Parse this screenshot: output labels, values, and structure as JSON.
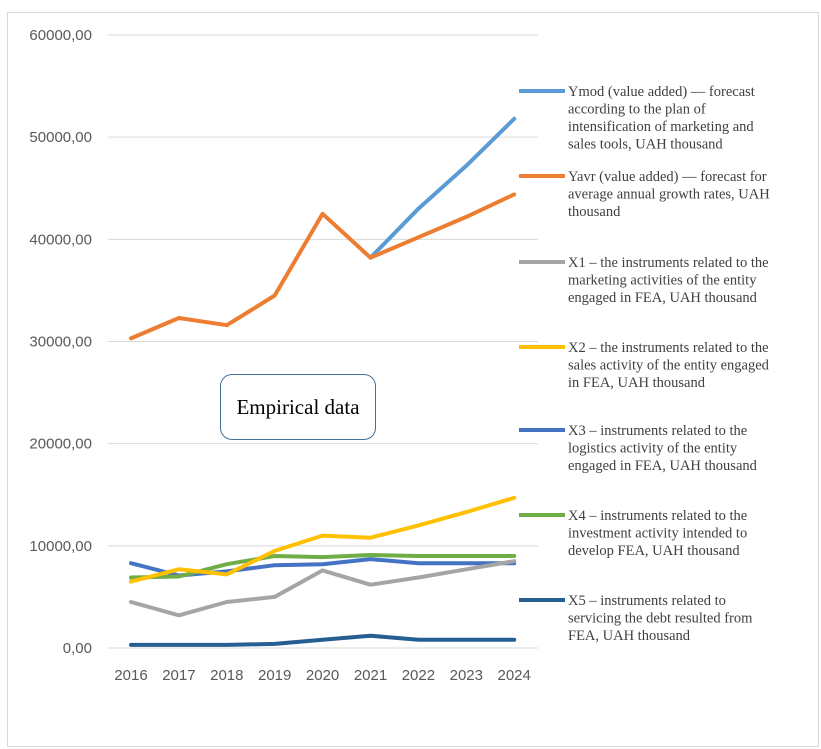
{
  "chart_data": {
    "type": "line",
    "categories": [
      "2016",
      "2017",
      "2018",
      "2019",
      "2020",
      "2021",
      "2022",
      "2023",
      "2024"
    ],
    "y_tick_labels": [
      "0,00",
      "10000,00",
      "20000,00",
      "30000,00",
      "40000,00",
      "50000,00",
      "60000,00"
    ],
    "ylim": [
      0,
      60000
    ],
    "grid": "horizontal",
    "legend_position": "right",
    "annotation": "Empirical data",
    "series": [
      {
        "name": "Ymod (value added) — forecast according to the plan of intensification of marketing and sales tools, UAH thousand",
        "color": "#5b9bd5",
        "values": [
          null,
          null,
          null,
          null,
          null,
          38200,
          43000,
          47200,
          51800
        ]
      },
      {
        "name": "Yavr (value added) — forecast for average annual growth rates, UAH thousand",
        "color": "#ed7d31",
        "values": [
          30300,
          32300,
          31600,
          34500,
          42500,
          38200,
          40200,
          42200,
          44400
        ]
      },
      {
        "name": "X1 – the instruments related to the marketing activities of the entity engaged in FEA, UAH thousand",
        "color": "#a5a5a5",
        "values": [
          4500,
          3200,
          4500,
          5000,
          7600,
          6200,
          6900,
          7700,
          8500
        ]
      },
      {
        "name": "X2 – the instruments related to the sales activity of the entity engaged in FEA, UAH thousand",
        "color": "#ffc000",
        "values": [
          6500,
          7700,
          7200,
          9500,
          11000,
          10800,
          12000,
          13300,
          14700
        ]
      },
      {
        "name": "X3 – instruments related to the logistics activity of the entity engaged in FEA, UAH thousand",
        "color": "#4472c4",
        "values": [
          8300,
          7100,
          7500,
          8100,
          8200,
          8700,
          8300,
          8300,
          8300
        ]
      },
      {
        "name": "X4 – instruments related to the investment activity intended to develop FEA, UAH thousand",
        "color": "#70ad47",
        "values": [
          6900,
          7000,
          8200,
          9000,
          8900,
          9100,
          9000,
          9000,
          9000
        ]
      },
      {
        "name": "X5 – instruments related to servicing the debt resulted from FEA, UAH thousand",
        "color": "#255e91",
        "values": [
          300,
          300,
          300,
          400,
          800,
          1200,
          800,
          800,
          800
        ]
      }
    ]
  },
  "legend_lines": [
    [
      "Ymod (value added) — forecast",
      "according to the plan of",
      "intensification of marketing and",
      "sales tools, UAH thousand"
    ],
    [
      "Yavr (value added) — forecast for",
      "average annual growth rates, UAH",
      "thousand"
    ],
    [
      "X1 – the instruments related to the",
      "marketing activities of the entity",
      "engaged in FEA, UAH thousand"
    ],
    [
      "X2 – the instruments related to the",
      "sales activity of the entity engaged",
      "in FEA, UAH thousand"
    ],
    [
      "X3 – instruments related to the",
      "logistics activity of the entity",
      "engaged in FEA, UAH thousand"
    ],
    [
      "X4 – instruments related to the",
      "investment activity intended to",
      "develop FEA, UAH thousand"
    ],
    [
      "X5 – instruments related to",
      "servicing the debt resulted from",
      "FEA, UAH thousand"
    ]
  ]
}
